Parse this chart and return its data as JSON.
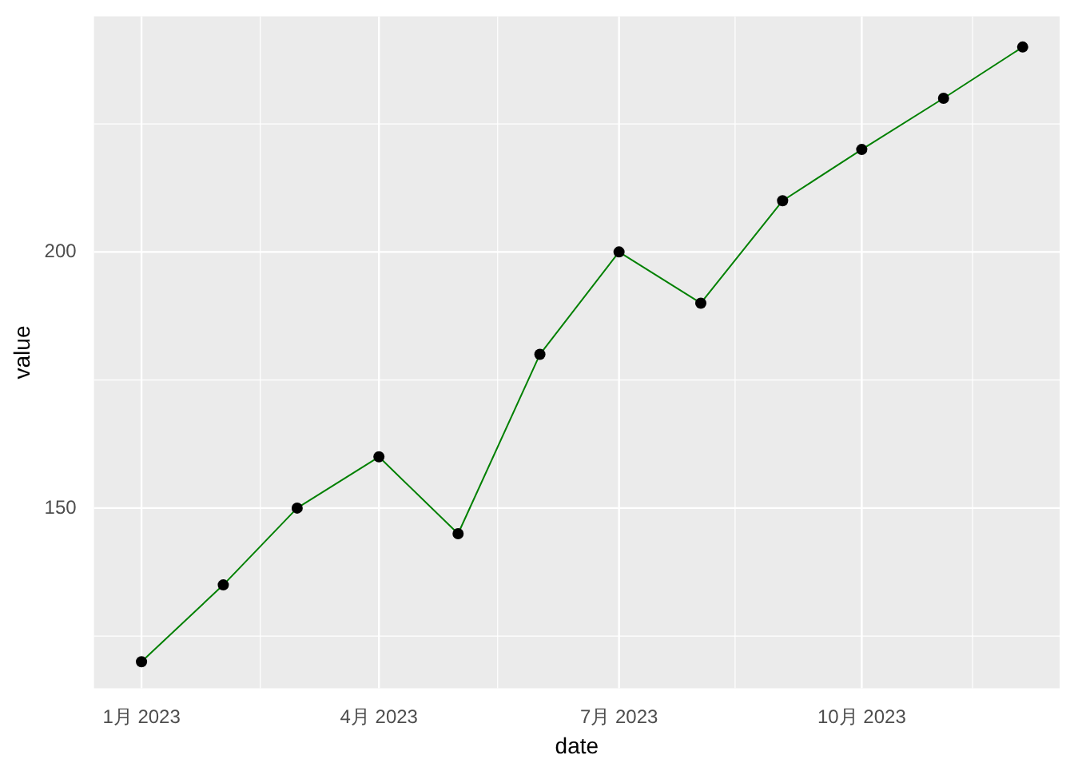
{
  "chart_data": {
    "type": "line",
    "xlabel": "date",
    "ylabel": "value",
    "x": [
      "2023-01-01",
      "2023-02-01",
      "2023-03-01",
      "2023-04-01",
      "2023-05-01",
      "2023-06-01",
      "2023-07-01",
      "2023-08-01",
      "2023-09-01",
      "2023-10-01",
      "2023-11-01",
      "2023-12-01"
    ],
    "series": [
      {
        "color": "#008000",
        "values": [
          120,
          135,
          150,
          160,
          145,
          180,
          200,
          190,
          210,
          220,
          230,
          240
        ]
      }
    ],
    "xlim": [
      "2022-12-14",
      "2023-12-15"
    ],
    "xticks": [
      {
        "value": "2023-01-01",
        "label": "1月 2023"
      },
      {
        "value": "2023-04-01",
        "label": "4月 2023"
      },
      {
        "value": "2023-07-01",
        "label": "7月 2023"
      },
      {
        "value": "2023-10-01",
        "label": "10月 2023"
      }
    ],
    "ylim": [
      114.8,
      246
    ],
    "yticks": [
      150,
      200
    ],
    "grid": true,
    "legend": false,
    "marker": "circle",
    "line_style": "solid"
  }
}
